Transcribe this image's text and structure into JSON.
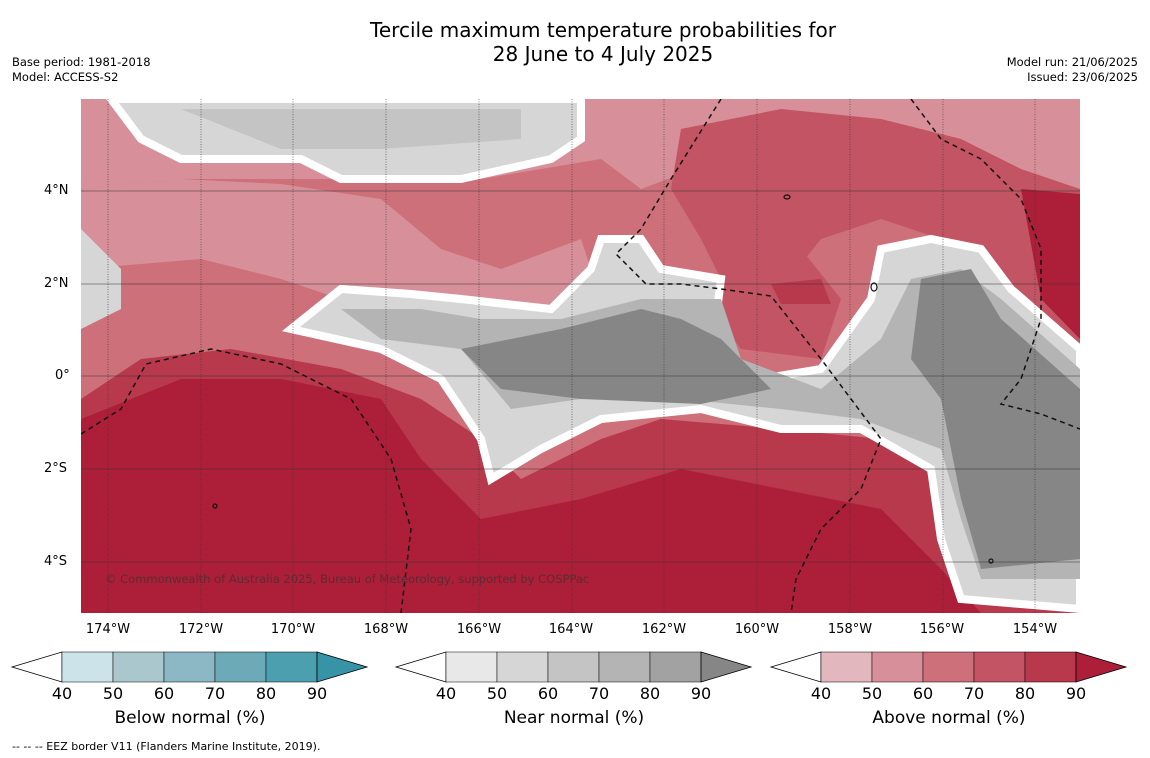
{
  "header": {
    "title_line1": "Tercile maximum temperature probabilities for",
    "title_line2": "28 June to 4 July 2025",
    "base_period": "Base period: 1981-2018",
    "model": "Model: ACCESS-S2",
    "model_run": "Model run: 21/06/2025",
    "issued": "Issued: 23/06/2025"
  },
  "map": {
    "copyright": "© Commonwealth of Australia 2025, Bureau of Meteorology, supported by COSPPac",
    "lat_labels": [
      "4°N",
      "2°N",
      "0°",
      "2°S",
      "4°S"
    ],
    "lon_labels": [
      "174°W",
      "172°W",
      "170°W",
      "168°W",
      "166°W",
      "164°W",
      "162°W",
      "160°W",
      "158°W",
      "156°W",
      "154°W"
    ],
    "colors": {
      "above": [
        "#e2b8be",
        "#d79099",
        "#cd7079",
        "#c35463",
        "#b8384c",
        "#ad1f38"
      ],
      "near": [
        "#e8e8e8",
        "#d6d6d6",
        "#c4c4c4",
        "#b4b4b4",
        "#a2a2a2",
        "#868686"
      ]
    }
  },
  "legends": [
    {
      "title": "Below normal (%)",
      "ticks": [
        "40",
        "50",
        "60",
        "70",
        "80",
        "90"
      ],
      "colors": [
        "#ffffff",
        "#cce3ea",
        "#a9c7cd",
        "#8bb8c4",
        "#6caab8",
        "#4b9fae",
        "#3793a6"
      ]
    },
    {
      "title": "Near normal (%)",
      "ticks": [
        "40",
        "50",
        "60",
        "70",
        "80",
        "90"
      ],
      "colors": [
        "#ffffff",
        "#e8e8e8",
        "#d6d6d6",
        "#c4c4c4",
        "#b4b4b4",
        "#a2a2a2",
        "#868686"
      ]
    },
    {
      "title": "Above normal (%)",
      "ticks": [
        "40",
        "50",
        "60",
        "70",
        "80",
        "90"
      ],
      "colors": [
        "#ffffff",
        "#e2b8be",
        "#d79099",
        "#cd7079",
        "#c35463",
        "#b8384c",
        "#ad1f38"
      ]
    }
  ],
  "footnote": "--  --  -- EEZ border V11 (Flanders Marine Institute, 2019)."
}
